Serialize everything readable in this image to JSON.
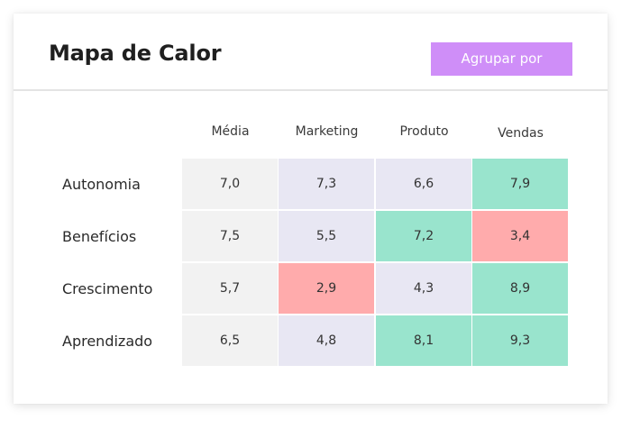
{
  "header": {
    "title": "Mapa de Calor",
    "group_button_label": "Agrupar por"
  },
  "colors": {
    "button_bg": "#cf8ef8",
    "neutral": "#f2f2f2",
    "low": "#ffabac",
    "mid": "#e8e7f3",
    "high": "#99e4cd"
  },
  "heatmap": {
    "columns": [
      "Média",
      "Marketing",
      "Produto",
      "Vendas"
    ],
    "rows": [
      {
        "label": "Autonomia",
        "cells": [
          {
            "value": "7,0",
            "level": "neutral"
          },
          {
            "value": "7,3",
            "level": "mid"
          },
          {
            "value": "6,6",
            "level": "mid"
          },
          {
            "value": "7,9",
            "level": "high"
          }
        ]
      },
      {
        "label": "Benefícios",
        "cells": [
          {
            "value": "7,5",
            "level": "neutral"
          },
          {
            "value": "5,5",
            "level": "mid"
          },
          {
            "value": "7,2",
            "level": "high"
          },
          {
            "value": "3,4",
            "level": "low"
          }
        ]
      },
      {
        "label": "Crescimento",
        "cells": [
          {
            "value": "5,7",
            "level": "neutral"
          },
          {
            "value": "2,9",
            "level": "low"
          },
          {
            "value": "4,3",
            "level": "mid"
          },
          {
            "value": "8,9",
            "level": "high"
          }
        ]
      },
      {
        "label": "Aprendizado",
        "cells": [
          {
            "value": "6,5",
            "level": "neutral"
          },
          {
            "value": "4,8",
            "level": "mid"
          },
          {
            "value": "8,1",
            "level": "high"
          },
          {
            "value": "9,3",
            "level": "high"
          }
        ]
      }
    ]
  }
}
